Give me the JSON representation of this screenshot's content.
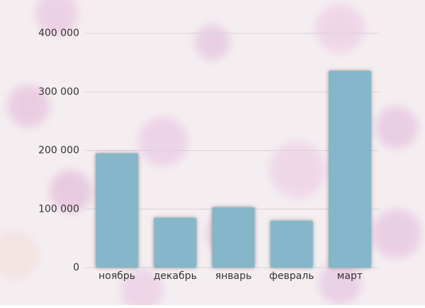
{
  "chart_data": {
    "type": "bar",
    "categories": [
      "ноябрь",
      "декабрь",
      "январь",
      "февраль",
      "март"
    ],
    "values": [
      195000,
      85000,
      103000,
      80000,
      336000
    ],
    "color": "#86b6c9",
    "ylim": [
      0,
      400000
    ],
    "yticks": [
      {
        "value": 0,
        "label": "0"
      },
      {
        "value": 100000,
        "label": "100 000"
      },
      {
        "value": 200000,
        "label": "200 000"
      },
      {
        "value": 300000,
        "label": "300 000"
      },
      {
        "value": 400000,
        "label": "400 000"
      }
    ],
    "grid": true
  }
}
